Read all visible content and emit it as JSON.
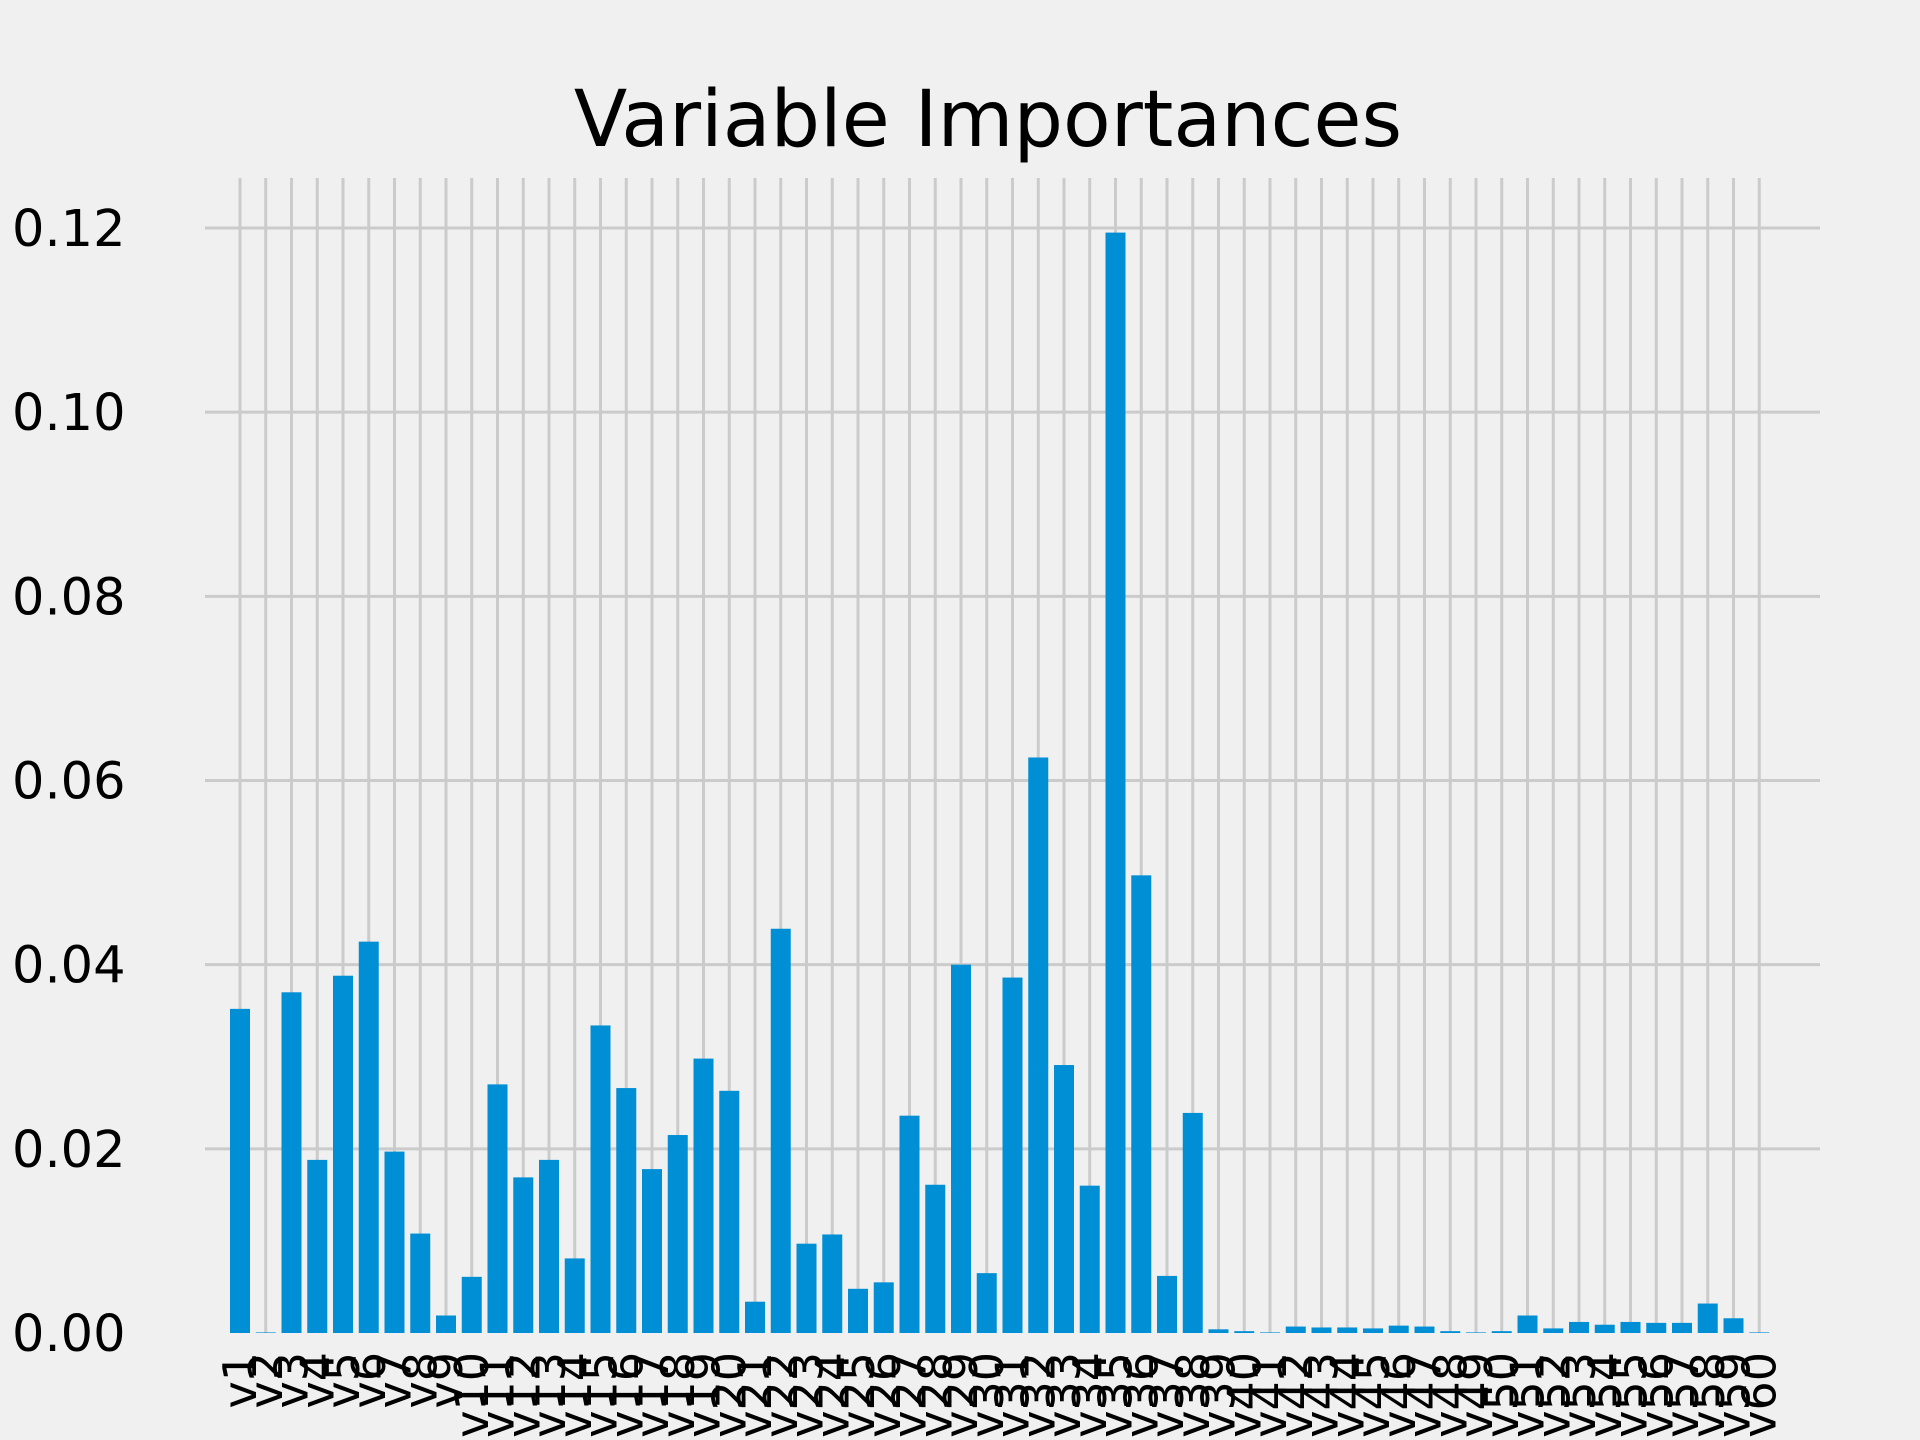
{
  "chart_data": {
    "type": "bar",
    "title": "Variable Importances",
    "xlabel": "",
    "ylabel": "",
    "ylim": [
      0,
      0.125
    ],
    "yticks": [
      "0.00",
      "0.02",
      "0.04",
      "0.06",
      "0.08",
      "0.10",
      "0.12"
    ],
    "grid": true,
    "bar_color": "#008fd5",
    "background_color": "#f0f0f0",
    "grid_color": "#cbcbcb",
    "categories": [
      "v1",
      "v2",
      "v3",
      "v4",
      "v5",
      "v6",
      "v7",
      "v8",
      "v9",
      "v10",
      "v11",
      "v12",
      "v13",
      "v14",
      "v15",
      "v16",
      "v17",
      "v18",
      "v19",
      "v20",
      "v21",
      "v22",
      "v23",
      "v24",
      "v25",
      "v26",
      "v27",
      "v28",
      "v29",
      "v30",
      "v31",
      "v32",
      "v33",
      "v34",
      "v35",
      "v36",
      "v37",
      "v38",
      "v39",
      "v40",
      "v41",
      "v42",
      "v43",
      "v44",
      "v45",
      "v46",
      "v47",
      "v48",
      "v49",
      "v50",
      "v51",
      "v52",
      "v53",
      "v54",
      "v55",
      "v56",
      "v57",
      "v58",
      "v59",
      "v60"
    ],
    "values": [
      0.0352,
      0.0,
      0.037,
      0.0188,
      0.0388,
      0.0425,
      0.0197,
      0.0108,
      0.0019,
      0.0061,
      0.027,
      0.0169,
      0.0188,
      0.0081,
      0.0334,
      0.0266,
      0.0178,
      0.0215,
      0.0298,
      0.0263,
      0.0034,
      0.0439,
      0.0097,
      0.0107,
      0.0048,
      0.0055,
      0.0236,
      0.0161,
      0.04,
      0.0065,
      0.0386,
      0.0625,
      0.0291,
      0.016,
      0.1195,
      0.0497,
      0.0062,
      0.0239,
      0.0004,
      0.0002,
      0.0,
      0.0007,
      0.0006,
      0.0006,
      0.0005,
      0.0008,
      0.0007,
      0.0002,
      0.0,
      0.0002,
      0.0019,
      0.0005,
      0.0012,
      0.0009,
      0.0012,
      0.0011,
      0.0011,
      0.0032,
      0.0016,
      0.0
    ]
  }
}
